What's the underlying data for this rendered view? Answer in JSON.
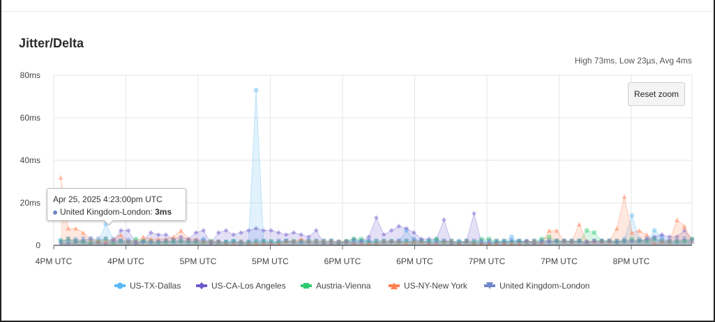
{
  "header": {
    "title": "Jitter/Delta",
    "stats": "High 73ms, Low 23µs, Avg 4ms",
    "reset_zoom_label": "Reset zoom"
  },
  "tooltip": {
    "time": "Apr 25, 2025 4:23:00pm UTC",
    "series": "United Kingdom-London",
    "value": "3ms"
  },
  "chart_data": {
    "type": "area",
    "title": "Jitter/Delta",
    "ylabel": "",
    "xlabel": "",
    "ylim": [
      0,
      80
    ],
    "y_ticks": [
      "0",
      "20ms",
      "40ms",
      "60ms",
      "80ms"
    ],
    "x_tick_labels": [
      "4PM UTC",
      "4PM UTC",
      "5PM UTC",
      "5PM UTC",
      "6PM UTC",
      "6PM UTC",
      "7PM UTC",
      "7PM UTC",
      "8PM UTC"
    ],
    "grid": true,
    "legend_position": "bottom",
    "series": [
      {
        "name": "US-TX-Dallas",
        "color": "#5bb8f5",
        "marker": "circle",
        "values": [
          2.5,
          2,
          3,
          2,
          3,
          1.5,
          10,
          3,
          2,
          2.5,
          1.5,
          2,
          1.5,
          1.5,
          2,
          1.5,
          2,
          1.5,
          2,
          3,
          1.5,
          1.5,
          1.5,
          2,
          1,
          1,
          73,
          1.5,
          1,
          1.5,
          2,
          1.5,
          1.5,
          1.5,
          1,
          1.5,
          2,
          1.5,
          1.5,
          1.5,
          1.5,
          2,
          1,
          1.5,
          2,
          2,
          7,
          3,
          2,
          1.5,
          2,
          2,
          1.5,
          2,
          1.5,
          1,
          1.5,
          1.5,
          1.5,
          1.5,
          4,
          1.5,
          2,
          1.5,
          1.5,
          1.5,
          2,
          2,
          2,
          2,
          1.5,
          2,
          2,
          2,
          1.5,
          3,
          14,
          3,
          2,
          7,
          4,
          1.5,
          1.5,
          2,
          1.5
        ]
      },
      {
        "name": "US-CA-Los Angeles",
        "color": "#6a5acd",
        "marker": "diamond",
        "values": [
          1,
          1,
          1.5,
          2,
          1,
          1.5,
          1,
          2,
          7,
          7,
          1,
          2,
          6,
          5,
          5,
          3,
          4,
          3,
          6,
          7,
          1,
          6,
          7,
          5,
          6,
          7,
          8,
          7,
          7,
          6,
          5,
          6,
          5,
          4,
          7,
          1,
          1,
          1,
          2,
          3,
          2,
          4,
          13,
          5,
          7,
          9,
          8,
          6,
          3,
          3,
          3,
          12,
          1,
          1,
          2,
          15,
          1,
          1,
          1.5,
          1.5,
          2,
          2,
          2,
          1,
          2,
          2,
          2,
          2,
          1.5,
          2,
          1.5,
          2,
          2,
          2,
          1.5,
          2,
          2,
          2,
          3,
          4,
          5,
          4,
          4,
          7,
          3
        ]
      },
      {
        "name": "Austria-Vienna",
        "color": "#2ecc71",
        "marker": "square",
        "values": [
          2,
          3,
          2,
          1.5,
          1.5,
          2,
          3,
          1,
          2,
          1.5,
          3,
          2,
          2,
          1.5,
          1.5,
          2,
          2,
          2,
          1.5,
          1.5,
          2,
          1.5,
          1.5,
          2,
          1.5,
          1.5,
          1.5,
          2,
          2,
          1.5,
          2,
          2,
          2,
          2,
          2,
          2,
          2,
          1.5,
          2,
          3,
          3,
          1.5,
          2,
          2,
          2,
          1.5,
          2,
          1.5,
          2,
          2,
          3,
          1.5,
          2,
          1.5,
          2,
          1.5,
          3,
          3,
          2,
          2,
          1.5,
          2,
          1.5,
          2,
          3,
          4,
          2,
          2,
          2,
          2,
          7,
          6,
          2,
          2,
          2,
          2,
          3,
          2,
          2,
          3,
          2,
          2,
          2,
          2,
          3
        ]
      },
      {
        "name": "US-NY-New York",
        "color": "#ff7f50",
        "marker": "triangle",
        "values": [
          32,
          8,
          8,
          6,
          3,
          2,
          2,
          3,
          5,
          2,
          2,
          4,
          3,
          3,
          3,
          4,
          7,
          3,
          3,
          2,
          2,
          2,
          1,
          1,
          2,
          1,
          1,
          1,
          1,
          1,
          2,
          2,
          3,
          2,
          2,
          2,
          2,
          2,
          2,
          1,
          1,
          1,
          1,
          2,
          2,
          2,
          1,
          2,
          2,
          1,
          1,
          2,
          2,
          1,
          2,
          1,
          1,
          1,
          1,
          1,
          1,
          1,
          2,
          2,
          1,
          7,
          7,
          2,
          2,
          10,
          2,
          2,
          2,
          2,
          8,
          23,
          6,
          7,
          5,
          1,
          2,
          2,
          12,
          9,
          2
        ]
      },
      {
        "name": "United Kingdom-London",
        "color": "#6f86c9",
        "marker": "triangle-down",
        "values": [
          1.5,
          3,
          2,
          3,
          3,
          3,
          3,
          2,
          2,
          1.5,
          1.5,
          1.5,
          1.5,
          1.5,
          2,
          2,
          2,
          2,
          2,
          2,
          1.5,
          1.5,
          1.5,
          1.5,
          1.5,
          1.5,
          2,
          2,
          1.5,
          2,
          2,
          1.5,
          1.5,
          2,
          2,
          2,
          2,
          1.5,
          1.5,
          2,
          2,
          2,
          2,
          2,
          1.5,
          2,
          2,
          2,
          2,
          1.5,
          1.5,
          2,
          2,
          1.5,
          2,
          2,
          2,
          2,
          2,
          2,
          2,
          2,
          1.5,
          2,
          2,
          2,
          2,
          2,
          2,
          2,
          1.5,
          2,
          2,
          2,
          2,
          2,
          2,
          2,
          3,
          3,
          2,
          2,
          2,
          3,
          2
        ]
      }
    ]
  }
}
